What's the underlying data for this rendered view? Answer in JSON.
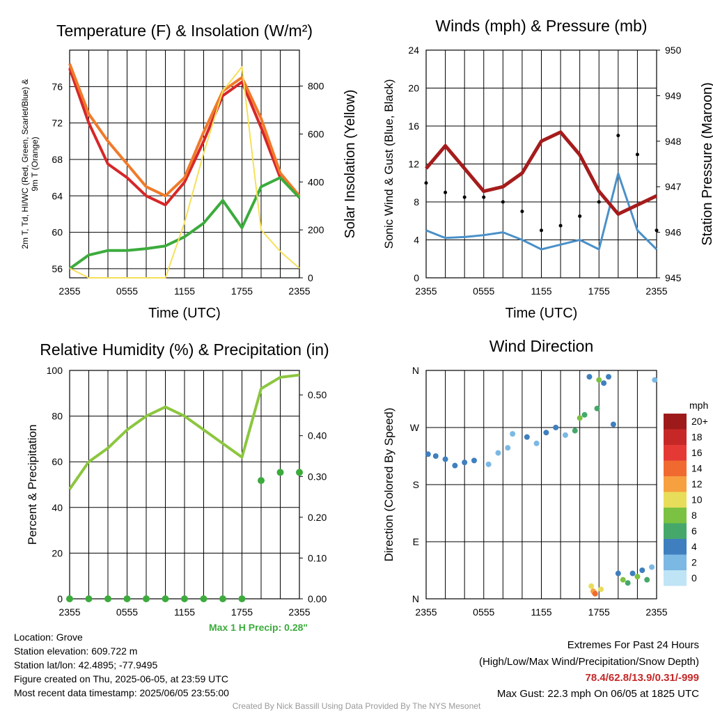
{
  "chart_data": [
    {
      "id": "temperature",
      "type": "line",
      "title": "Temperature (F) & Insolation (W/m²)",
      "xlabel": "Time (UTC)",
      "ylabel_left": "2m T, Td, HI/WC (Red, Green, Scarlet/Blue) & 9m T (Orange)",
      "ylabel_right": "Solar Insolation (Yellow)",
      "x_ticks": [
        "2355",
        "0555",
        "1155",
        "1755",
        "2355"
      ],
      "y_ticks_left": [
        "56",
        "60",
        "64",
        "68",
        "72",
        "76"
      ],
      "y_ticks_right": [
        "0",
        "200",
        "400",
        "600",
        "800"
      ],
      "ylim_left": [
        55,
        80
      ],
      "ylim_right": [
        0,
        950
      ],
      "x_hours": [
        0,
        2,
        4,
        6,
        8,
        10,
        12,
        14,
        16,
        18,
        20,
        22,
        24
      ],
      "series": [
        {
          "key": "t2m",
          "color": "#d62728",
          "values": [
            78.0,
            72.0,
            67.5,
            66.0,
            64.0,
            63.0,
            65.5,
            70.0,
            75.0,
            76.5,
            71.5,
            66.0,
            64.0
          ]
        },
        {
          "key": "t9m",
          "color": "#f07a2a",
          "values": [
            78.5,
            73.0,
            70.0,
            67.5,
            65.0,
            64.0,
            66.0,
            71.0,
            75.5,
            77.0,
            72.5,
            66.5,
            64.0
          ]
        },
        {
          "key": "td",
          "color": "#3cab3c",
          "values": [
            56.0,
            57.5,
            58.0,
            58.0,
            58.2,
            58.5,
            59.5,
            61.0,
            63.5,
            60.5,
            65.0,
            66.0,
            63.8
          ]
        },
        {
          "key": "insolation",
          "color": "#f5e05a",
          "values": [
            40,
            0,
            0,
            0,
            0,
            0,
            230,
            520,
            780,
            880,
            200,
            110,
            40
          ]
        }
      ]
    },
    {
      "id": "winds",
      "type": "line",
      "title": "Winds (mph) & Pressure (mb)",
      "xlabel": "Time (UTC)",
      "ylabel_left": "Sonic Wind & Gust (Blue, Black)",
      "ylabel_right": "Station Pressure (Maroon)",
      "x_ticks": [
        "2355",
        "0555",
        "1155",
        "1755",
        "2355"
      ],
      "y_ticks_left": [
        "0",
        "4",
        "8",
        "12",
        "16",
        "20",
        "24"
      ],
      "y_ticks_right": [
        "945",
        "946",
        "947",
        "948",
        "949",
        "950"
      ],
      "ylim_left": [
        0,
        24
      ],
      "ylim_right": [
        945,
        950
      ],
      "x_hours": [
        0,
        2,
        4,
        6,
        8,
        10,
        12,
        14,
        16,
        18,
        20,
        22,
        24
      ],
      "series": [
        {
          "key": "wind",
          "color": "#4a90c8",
          "values": [
            5.0,
            4.2,
            4.3,
            4.5,
            4.8,
            4.0,
            3.0,
            3.5,
            4.0,
            3.0,
            11.0,
            5.0,
            3.0
          ]
        },
        {
          "key": "pressure",
          "color": "#a51c1c",
          "values": [
            947.4,
            947.9,
            947.4,
            946.9,
            947.0,
            947.3,
            948.0,
            948.2,
            947.7,
            946.9,
            946.4,
            946.6,
            946.8
          ]
        },
        {
          "key": "gust",
          "color": "#000000",
          "values": [
            10.0,
            9.0,
            8.5,
            8.5,
            8.0,
            7.0,
            5.0,
            5.5,
            6.5,
            8.0,
            15.0,
            13.0,
            5.0
          ]
        }
      ]
    },
    {
      "id": "humidity",
      "type": "line",
      "title": "Relative Humidity (%) & Precipitation (in)",
      "xlabel": "",
      "ylabel_left": "Percent & Precipitation",
      "x_ticks": [
        "2355",
        "0555",
        "1155",
        "1755",
        "2355"
      ],
      "y_ticks_left": [
        "0",
        "20",
        "40",
        "60",
        "80",
        "100"
      ],
      "y_ticks_right": [
        "0.00",
        "0.10",
        "0.20",
        "0.30",
        "0.40",
        "0.50"
      ],
      "ylim_left": [
        0,
        100
      ],
      "ylim_right": [
        0,
        0.56
      ],
      "x_hours": [
        0,
        2,
        4,
        6,
        8,
        10,
        12,
        14,
        16,
        18,
        20,
        22,
        24
      ],
      "series": [
        {
          "key": "rh",
          "color": "#8cc63f",
          "values": [
            48,
            60,
            66,
            74,
            80,
            84,
            80,
            74,
            68,
            62,
            92,
            97,
            98
          ]
        },
        {
          "key": "precip",
          "color": "#3cab3c",
          "values": [
            0,
            0,
            0,
            0,
            0,
            0,
            0,
            0,
            0,
            0,
            0.29,
            0.31,
            0.31
          ]
        }
      ]
    },
    {
      "id": "direction",
      "type": "scatter",
      "title": "Wind Direction",
      "ylabel_left": "Direction (Colored By Speed)",
      "x_ticks": [
        "2355",
        "0555",
        "1155",
        "1755",
        "2355"
      ],
      "y_ticks_left": [
        "N",
        "E",
        "S",
        "W",
        "N"
      ],
      "ylim": [
        0,
        360
      ],
      "points": [
        [
          0.2,
          228,
          4
        ],
        [
          1.0,
          225,
          4
        ],
        [
          2.0,
          220,
          4
        ],
        [
          3.0,
          210,
          4
        ],
        [
          4.0,
          215,
          4
        ],
        [
          5.0,
          218,
          4
        ],
        [
          6.5,
          212,
          2
        ],
        [
          7.5,
          230,
          2
        ],
        [
          8.5,
          238,
          2
        ],
        [
          9.0,
          260,
          2
        ],
        [
          10.5,
          255,
          4
        ],
        [
          11.5,
          245,
          2
        ],
        [
          12.5,
          262,
          4
        ],
        [
          13.5,
          270,
          4
        ],
        [
          14.5,
          258,
          2
        ],
        [
          15.5,
          265,
          6
        ],
        [
          16.0,
          285,
          8
        ],
        [
          16.5,
          290,
          6
        ],
        [
          17.0,
          350,
          4
        ],
        [
          17.2,
          20,
          10
        ],
        [
          17.5,
          10,
          12
        ],
        [
          17.8,
          300,
          6
        ],
        [
          18.0,
          345,
          8
        ],
        [
          18.5,
          340,
          4
        ],
        [
          19.0,
          350,
          4
        ],
        [
          19.5,
          275,
          4
        ],
        [
          20.0,
          40,
          4
        ],
        [
          20.5,
          30,
          8
        ],
        [
          21.0,
          25,
          6
        ],
        [
          21.5,
          40,
          4
        ],
        [
          22.0,
          35,
          8
        ],
        [
          22.5,
          45,
          4
        ],
        [
          23.0,
          30,
          6
        ],
        [
          23.5,
          50,
          2
        ],
        [
          23.8,
          345,
          2
        ],
        [
          17.4,
          12,
          12
        ],
        [
          17.6,
          8,
          14
        ],
        [
          18.2,
          15,
          10
        ]
      ],
      "colorbar": {
        "label": "mph",
        "ticks": [
          "20+",
          "18",
          "16",
          "14",
          "12",
          "10",
          "8",
          "6",
          "4",
          "2",
          "0"
        ],
        "colors": [
          "#9e1a1a",
          "#c62828",
          "#e53935",
          "#f06a30",
          "#f7a040",
          "#e8dd5a",
          "#7cc242",
          "#45a86a",
          "#3f7fbf",
          "#7cb8e4",
          "#bfe4f5"
        ]
      }
    }
  ],
  "footer": {
    "max_precip": "Max 1 H Precip: 0.28\"",
    "location": "Location: Grove",
    "elevation": "Station elevation: 609.722 m",
    "latlon": "Station lat/lon: 42.4895; -77.9495",
    "created": "Figure created on Thu, 2025-06-05, at 23:59 UTC",
    "recent": "Most recent data timestamp: 2025/06/05 23:55:00",
    "extremes_title": "Extremes For Past 24 Hours",
    "extremes_legend": "(High/Low/Max Wind/Precipitation/Snow Depth)",
    "extremes_values": "78.4/62.8/13.9/0.31/-999",
    "max_gust": "Max Gust: 22.3 mph On 06/05 at 1825 UTC",
    "credit": "Created By Nick Bassill Using Data Provided By The NYS Mesonet"
  }
}
